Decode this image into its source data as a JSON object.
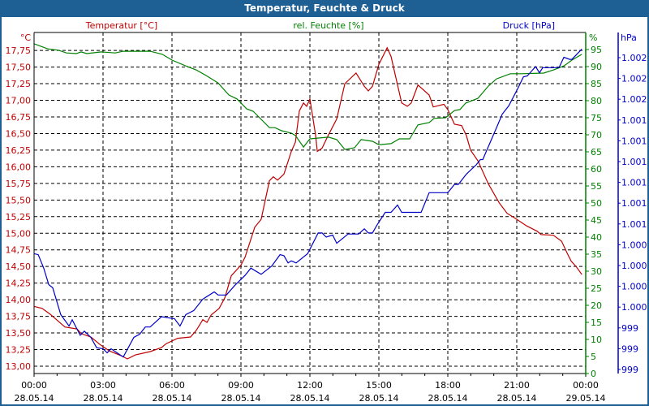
{
  "window": {
    "title": "Temperatur, Feuchte & Druck"
  },
  "colors": {
    "temperature": "#c00000",
    "humidity": "#008000",
    "pressure": "#0000c8",
    "titlebar": "#1e5f94"
  },
  "chart_data": {
    "type": "line",
    "title": "Temperatur, Feuchte & Druck",
    "x_axis": {
      "unit": "hours since 28.05.14 00:00",
      "range": [
        0,
        24
      ],
      "grid": true,
      "ticks": [
        {
          "time": "00:00",
          "date": "28.05.14"
        },
        {
          "time": "03:00",
          "date": "28.05.14"
        },
        {
          "time": "06:00",
          "date": "28.05.14"
        },
        {
          "time": "09:00",
          "date": "28.05.14"
        },
        {
          "time": "12:00",
          "date": "28.05.14"
        },
        {
          "time": "15:00",
          "date": "28.05.14"
        },
        {
          "time": "18:00",
          "date": "28.05.14"
        },
        {
          "time": "21:00",
          "date": "28.05.14"
        },
        {
          "time": "00:00",
          "date": "29.05.14"
        }
      ]
    },
    "axes": {
      "temperature": {
        "label": "Temperatur [°C]",
        "unit": "°C",
        "range": [
          12.89,
          18.02
        ],
        "ticks": [
          "13,00",
          "13,25",
          "13,50",
          "13,75",
          "14,00",
          "14,25",
          "14,50",
          "14,75",
          "15,00",
          "15,25",
          "15,50",
          "15,75",
          "16,00",
          "16,25",
          "16,50",
          "16,75",
          "17,00",
          "17,25",
          "17,50",
          "17,75"
        ]
      },
      "humidity": {
        "label": "rel. Feuchte [%]",
        "unit": "%",
        "range": [
          0,
          100
        ],
        "ticks": [
          "0",
          "5",
          "10",
          "15",
          "20",
          "25",
          "30",
          "35",
          "40",
          "45",
          "50",
          "55",
          "60",
          "65",
          "70",
          "75",
          "80",
          "85",
          "90",
          "95"
        ]
      },
      "pressure": {
        "label": "Druck [hPa]",
        "unit": "hPa",
        "range": [
          998.9,
          1002.2
        ],
        "ticks": [
          "999",
          "999",
          "999",
          "1.000",
          "1.000",
          "1.000",
          "1.000",
          "1.001",
          "1.001",
          "1.001",
          "1.001",
          "1.001",
          "1.001",
          "1.002",
          "1.002",
          "1.002"
        ]
      }
    },
    "series": [
      {
        "name": "Temperatur",
        "axis": "temperature",
        "points": [
          [
            0,
            13.9
          ],
          [
            0.35,
            13.87
          ],
          [
            0.71,
            13.78
          ],
          [
            1.34,
            13.59
          ],
          [
            1.87,
            13.56
          ],
          [
            2.05,
            13.49
          ],
          [
            2.47,
            13.44
          ],
          [
            2.89,
            13.32
          ],
          [
            3.28,
            13.23
          ],
          [
            3.78,
            13.16
          ],
          [
            4.06,
            13.11
          ],
          [
            4.41,
            13.17
          ],
          [
            5.05,
            13.22
          ],
          [
            5.54,
            13.28
          ],
          [
            5.75,
            13.34
          ],
          [
            6.25,
            13.42
          ],
          [
            6.81,
            13.44
          ],
          [
            7.06,
            13.54
          ],
          [
            7.34,
            13.7
          ],
          [
            7.52,
            13.66
          ],
          [
            7.7,
            13.77
          ],
          [
            8.05,
            13.87
          ],
          [
            8.3,
            14.03
          ],
          [
            8.58,
            14.36
          ],
          [
            9.0,
            14.52
          ],
          [
            9.18,
            14.64
          ],
          [
            9.6,
            15.09
          ],
          [
            9.88,
            15.21
          ],
          [
            10.24,
            15.79
          ],
          [
            10.41,
            15.85
          ],
          [
            10.59,
            15.8
          ],
          [
            10.87,
            15.89
          ],
          [
            11.19,
            16.23
          ],
          [
            11.37,
            16.37
          ],
          [
            11.54,
            16.84
          ],
          [
            11.72,
            16.96
          ],
          [
            11.86,
            16.91
          ],
          [
            12.0,
            17.02
          ],
          [
            12.25,
            16.47
          ],
          [
            12.32,
            16.23
          ],
          [
            12.53,
            16.28
          ],
          [
            12.78,
            16.46
          ],
          [
            13.17,
            16.72
          ],
          [
            13.52,
            17.25
          ],
          [
            14.01,
            17.41
          ],
          [
            14.37,
            17.21
          ],
          [
            14.54,
            17.14
          ],
          [
            14.72,
            17.21
          ],
          [
            15.0,
            17.54
          ],
          [
            15.36,
            17.79
          ],
          [
            15.53,
            17.66
          ],
          [
            15.99,
            16.96
          ],
          [
            16.24,
            16.91
          ],
          [
            16.41,
            16.96
          ],
          [
            16.7,
            17.23
          ],
          [
            17.19,
            17.08
          ],
          [
            17.37,
            16.9
          ],
          [
            17.83,
            16.94
          ],
          [
            18.0,
            16.86
          ],
          [
            18.29,
            16.64
          ],
          [
            18.6,
            16.62
          ],
          [
            18.81,
            16.47
          ],
          [
            18.99,
            16.25
          ],
          [
            19.31,
            16.09
          ],
          [
            19.77,
            15.74
          ],
          [
            20.23,
            15.46
          ],
          [
            20.58,
            15.3
          ],
          [
            21.0,
            15.21
          ],
          [
            21.43,
            15.11
          ],
          [
            21.89,
            15.03
          ],
          [
            22.06,
            14.98
          ],
          [
            22.59,
            14.97
          ],
          [
            22.95,
            14.88
          ],
          [
            23.19,
            14.7
          ],
          [
            23.37,
            14.58
          ],
          [
            23.58,
            14.5
          ],
          [
            23.83,
            14.38
          ]
        ]
      },
      {
        "name": "rel. Feuchte",
        "axis": "humidity",
        "points": [
          [
            0,
            96.7
          ],
          [
            0.6,
            95.2
          ],
          [
            1.06,
            94.8
          ],
          [
            1.41,
            94.0
          ],
          [
            1.84,
            93.8
          ],
          [
            2.05,
            94.3
          ],
          [
            2.29,
            93.8
          ],
          [
            2.93,
            94.3
          ],
          [
            3.53,
            94.0
          ],
          [
            3.88,
            94.5
          ],
          [
            5.05,
            94.5
          ],
          [
            5.58,
            93.6
          ],
          [
            6.0,
            91.9
          ],
          [
            6.6,
            90.2
          ],
          [
            7.06,
            89.0
          ],
          [
            7.48,
            87.4
          ],
          [
            8.01,
            85.2
          ],
          [
            8.47,
            81.7
          ],
          [
            8.83,
            80.5
          ],
          [
            9.25,
            77.6
          ],
          [
            9.53,
            76.9
          ],
          [
            10.24,
            72.1
          ],
          [
            10.48,
            72.1
          ],
          [
            10.77,
            71.2
          ],
          [
            11.19,
            70.5
          ],
          [
            11.37,
            69.8
          ],
          [
            11.72,
            66.4
          ],
          [
            12.0,
            68.8
          ],
          [
            12.81,
            69.3
          ],
          [
            13.17,
            68.6
          ],
          [
            13.52,
            65.7
          ],
          [
            13.94,
            66.2
          ],
          [
            14.23,
            68.6
          ],
          [
            14.72,
            68.1
          ],
          [
            15.0,
            67.1
          ],
          [
            15.53,
            67.4
          ],
          [
            15.89,
            68.8
          ],
          [
            16.34,
            68.8
          ],
          [
            16.7,
            72.9
          ],
          [
            17.19,
            73.6
          ],
          [
            17.4,
            74.8
          ],
          [
            17.9,
            75.0
          ],
          [
            18.29,
            77.1
          ],
          [
            18.53,
            77.4
          ],
          [
            18.78,
            79.3
          ],
          [
            19.31,
            80.7
          ],
          [
            19.77,
            84.3
          ],
          [
            20.12,
            86.4
          ],
          [
            20.72,
            87.9
          ],
          [
            21.18,
            87.9
          ],
          [
            22.17,
            88.1
          ],
          [
            22.59,
            89.0
          ],
          [
            23.05,
            90.2
          ],
          [
            23.4,
            91.9
          ],
          [
            23.83,
            93.6
          ]
        ]
      },
      {
        "name": "Druck",
        "axis": "pressure",
        "points": [
          [
            0,
            1000.06
          ],
          [
            0.18,
            1000.05
          ],
          [
            0.42,
            999.92
          ],
          [
            0.64,
            999.76
          ],
          [
            0.81,
            999.73
          ],
          [
            1.16,
            999.47
          ],
          [
            1.52,
            999.36
          ],
          [
            1.66,
            999.42
          ],
          [
            2.01,
            999.27
          ],
          [
            2.19,
            999.31
          ],
          [
            2.47,
            999.25
          ],
          [
            2.72,
            999.15
          ],
          [
            3.0,
            999.14
          ],
          [
            3.18,
            999.1
          ],
          [
            3.35,
            999.14
          ],
          [
            3.88,
            999.06
          ],
          [
            4.34,
            999.25
          ],
          [
            4.59,
            999.28
          ],
          [
            4.84,
            999.35
          ],
          [
            5.05,
            999.35
          ],
          [
            5.54,
            999.45
          ],
          [
            6.11,
            999.43
          ],
          [
            6.35,
            999.36
          ],
          [
            6.6,
            999.47
          ],
          [
            6.95,
            999.51
          ],
          [
            7.34,
            999.62
          ],
          [
            7.84,
            999.69
          ],
          [
            8.01,
            999.66
          ],
          [
            8.37,
            999.66
          ],
          [
            8.72,
            999.75
          ],
          [
            9.18,
            999.85
          ],
          [
            9.43,
            999.92
          ],
          [
            9.88,
            999.86
          ],
          [
            10.34,
            999.94
          ],
          [
            10.7,
            1000.05
          ],
          [
            10.87,
            1000.04
          ],
          [
            11.05,
            999.97
          ],
          [
            11.19,
            999.99
          ],
          [
            11.4,
            999.97
          ],
          [
            11.9,
            1000.06
          ],
          [
            12.36,
            1000.26
          ],
          [
            12.53,
            1000.26
          ],
          [
            12.71,
            1000.22
          ],
          [
            12.99,
            1000.24
          ],
          [
            13.17,
            1000.16
          ],
          [
            13.66,
            1000.25
          ],
          [
            14.12,
            1000.25
          ],
          [
            14.37,
            1000.3
          ],
          [
            14.54,
            1000.26
          ],
          [
            14.72,
            1000.26
          ],
          [
            14.93,
            1000.34
          ],
          [
            15.28,
            1000.46
          ],
          [
            15.53,
            1000.46
          ],
          [
            15.81,
            1000.53
          ],
          [
            15.99,
            1000.46
          ],
          [
            16.84,
            1000.46
          ],
          [
            17.19,
            1000.65
          ],
          [
            17.76,
            1000.65
          ],
          [
            18.0,
            1000.65
          ],
          [
            18.29,
            1000.73
          ],
          [
            18.46,
            1000.73
          ],
          [
            18.81,
            1000.83
          ],
          [
            19.24,
            1000.92
          ],
          [
            19.42,
            1000.97
          ],
          [
            19.52,
            1000.97
          ],
          [
            20.12,
            1001.28
          ],
          [
            20.37,
            1001.41
          ],
          [
            20.65,
            1001.49
          ],
          [
            21.07,
            1001.67
          ],
          [
            21.29,
            1001.77
          ],
          [
            21.46,
            1001.78
          ],
          [
            21.82,
            1001.87
          ],
          [
            21.99,
            1001.81
          ],
          [
            22.13,
            1001.86
          ],
          [
            22.84,
            1001.86
          ],
          [
            23.05,
            1001.96
          ],
          [
            23.3,
            1001.94
          ],
          [
            23.4,
            1001.94
          ],
          [
            23.83,
            1002.04
          ]
        ]
      }
    ]
  }
}
